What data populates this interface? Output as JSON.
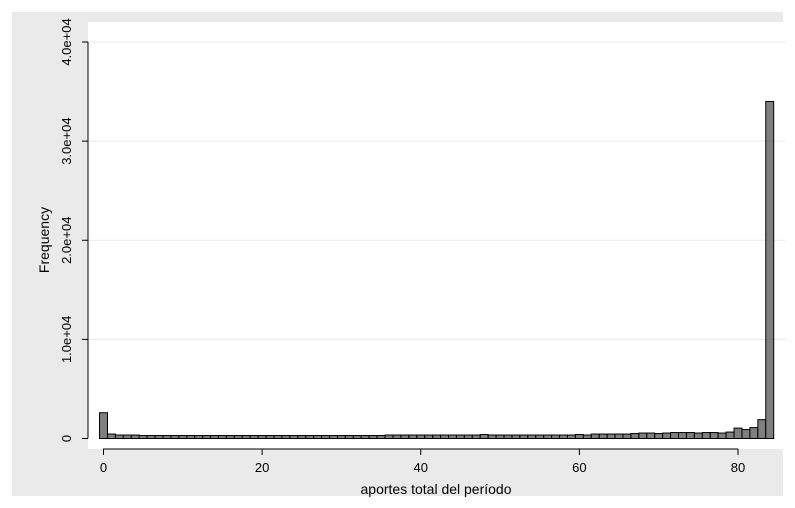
{
  "chart_data": {
    "type": "bar",
    "xlabel": "aportes total del período",
    "ylabel": "Frequency",
    "xlim": [
      -1,
      85
    ],
    "ylim": [
      0,
      40000
    ],
    "x_ticks": [
      0,
      20,
      40,
      60,
      80
    ],
    "x_tick_labels": [
      "0",
      "20",
      "40",
      "60",
      "80"
    ],
    "y_ticks": [
      0,
      10000,
      20000,
      30000,
      40000
    ],
    "y_tick_labels": [
      "0",
      "1.0e+04",
      "2.0e+04",
      "3.0e+04",
      "4.0e+04"
    ],
    "grid": true,
    "legend": "none",
    "bar_width": 1,
    "x": [
      0,
      1,
      2,
      3,
      4,
      5,
      6,
      7,
      8,
      9,
      10,
      11,
      12,
      13,
      14,
      15,
      16,
      17,
      18,
      19,
      20,
      21,
      22,
      23,
      24,
      25,
      26,
      27,
      28,
      29,
      30,
      31,
      32,
      33,
      34,
      35,
      36,
      37,
      38,
      39,
      40,
      41,
      42,
      43,
      44,
      45,
      46,
      47,
      48,
      49,
      50,
      51,
      52,
      53,
      54,
      55,
      56,
      57,
      58,
      59,
      60,
      61,
      62,
      63,
      64,
      65,
      66,
      67,
      68,
      69,
      70,
      71,
      72,
      73,
      74,
      75,
      76,
      77,
      78,
      79,
      80,
      81,
      82,
      83,
      84
    ],
    "values": [
      2600,
      450,
      350,
      350,
      350,
      300,
      300,
      300,
      300,
      300,
      300,
      300,
      300,
      300,
      300,
      300,
      300,
      300,
      300,
      300,
      300,
      300,
      300,
      300,
      300,
      300,
      300,
      300,
      300,
      300,
      300,
      300,
      300,
      300,
      300,
      300,
      350,
      350,
      350,
      350,
      350,
      350,
      350,
      350,
      350,
      350,
      350,
      350,
      400,
      350,
      350,
      350,
      350,
      350,
      350,
      350,
      350,
      350,
      350,
      350,
      400,
      350,
      450,
      450,
      450,
      450,
      450,
      500,
      550,
      550,
      500,
      550,
      600,
      600,
      600,
      550,
      600,
      600,
      550,
      650,
      1050,
      900,
      1100,
      1900,
      34000
    ],
    "colors": {
      "bar_fill": "#7f7f7f",
      "bar_stroke": "#000000",
      "grid": "#eaeaea",
      "outer_background": "#eaeaea",
      "plot_background": "#ffffff"
    }
  }
}
